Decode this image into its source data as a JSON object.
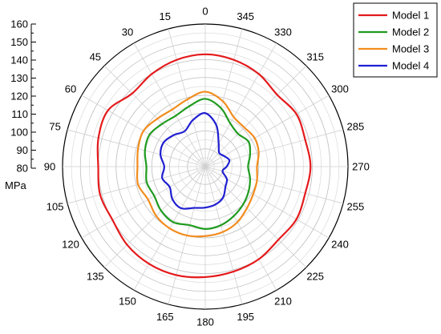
{
  "chart_data": {
    "type": "line",
    "subtype": "polar",
    "title": "",
    "angle_direction": "counterclockwise",
    "angle_zero": "top",
    "angle_labels": [
      "0",
      "15",
      "30",
      "45",
      "60",
      "75",
      "90",
      "105",
      "120",
      "135",
      "150",
      "165",
      "180",
      "195",
      "210",
      "225",
      "240",
      "255",
      "270",
      "285",
      "300",
      "315",
      "330",
      "345"
    ],
    "radial_axis": {
      "unit": "MPa",
      "min": 80,
      "max": 160,
      "major_step": 10,
      "minor_step": 5,
      "tick_labels": [
        "80",
        "90",
        "100",
        "110",
        "120",
        "130",
        "140",
        "150",
        "160"
      ]
    },
    "grid": true,
    "legend_position": "top-right",
    "x": [
      0,
      15,
      30,
      45,
      60,
      75,
      90,
      105,
      120,
      135,
      150,
      165,
      180,
      195,
      210,
      225,
      240,
      255,
      270,
      285,
      300,
      315,
      330,
      345
    ],
    "series": [
      {
        "name": "Model 1",
        "color": "#e41a1c",
        "values": [
          143,
          142,
          140,
          138,
          143,
          142,
          140,
          141,
          140,
          142,
          143,
          143,
          142,
          141,
          140,
          138,
          139,
          138,
          139,
          138,
          139,
          137,
          140,
          142
        ]
      },
      {
        "name": "Model 2",
        "color": "#1f9b1f",
        "values": [
          118,
          115,
          113,
          114,
          116,
          115,
          113,
          114,
          113,
          115,
          116,
          114,
          115,
          114,
          112,
          110,
          108,
          106,
          104,
          106,
          108,
          106,
          108,
          114
        ]
      },
      {
        "name": "Model 3",
        "color": "#f28c1e",
        "values": [
          122,
          119,
          117,
          118,
          120,
          119,
          118,
          119,
          117,
          119,
          120,
          120,
          119,
          118,
          116,
          113,
          111,
          110,
          109,
          111,
          112,
          111,
          112,
          118
        ]
      },
      {
        "name": "Model 4",
        "color": "#1f1fd1",
        "values": [
          110,
          107,
          103,
          105,
          107,
          106,
          103,
          105,
          103,
          106,
          107,
          104,
          103,
          102,
          100,
          96,
          94,
          90,
          92,
          94,
          92,
          91,
          95,
          104
        ]
      }
    ]
  }
}
